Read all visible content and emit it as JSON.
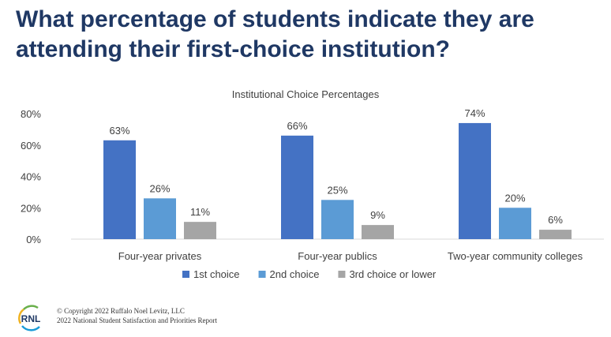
{
  "title": "What percentage of students indicate they are attending their first-choice institution?",
  "footer": {
    "logo_text": "RNL",
    "copyright_line1": "© Copyright 2022 Ruffalo Noel Levitz, LLC",
    "copyright_line2": "2022 National Student Satisfaction and Priorities Report"
  },
  "chart_data": {
    "type": "bar",
    "title": "Institutional Choice Percentages",
    "categories": [
      "Four-year privates",
      "Four-year publics",
      "Two-year community colleges"
    ],
    "series": [
      {
        "name": "1st choice",
        "values": [
          63,
          66,
          74
        ],
        "color": "#4472c4"
      },
      {
        "name": "2nd choice",
        "values": [
          26,
          25,
          20
        ],
        "color": "#5b9bd5"
      },
      {
        "name": "3rd choice or lower",
        "values": [
          11,
          9,
          6
        ],
        "color": "#a5a5a5"
      }
    ],
    "value_suffix": "%",
    "ylim": [
      0,
      80
    ],
    "yticks": [
      0,
      20,
      40,
      60,
      80
    ],
    "ytick_labels": [
      "0%",
      "20%",
      "40%",
      "60%",
      "80%"
    ],
    "legend_position": "bottom",
    "grid": false
  }
}
